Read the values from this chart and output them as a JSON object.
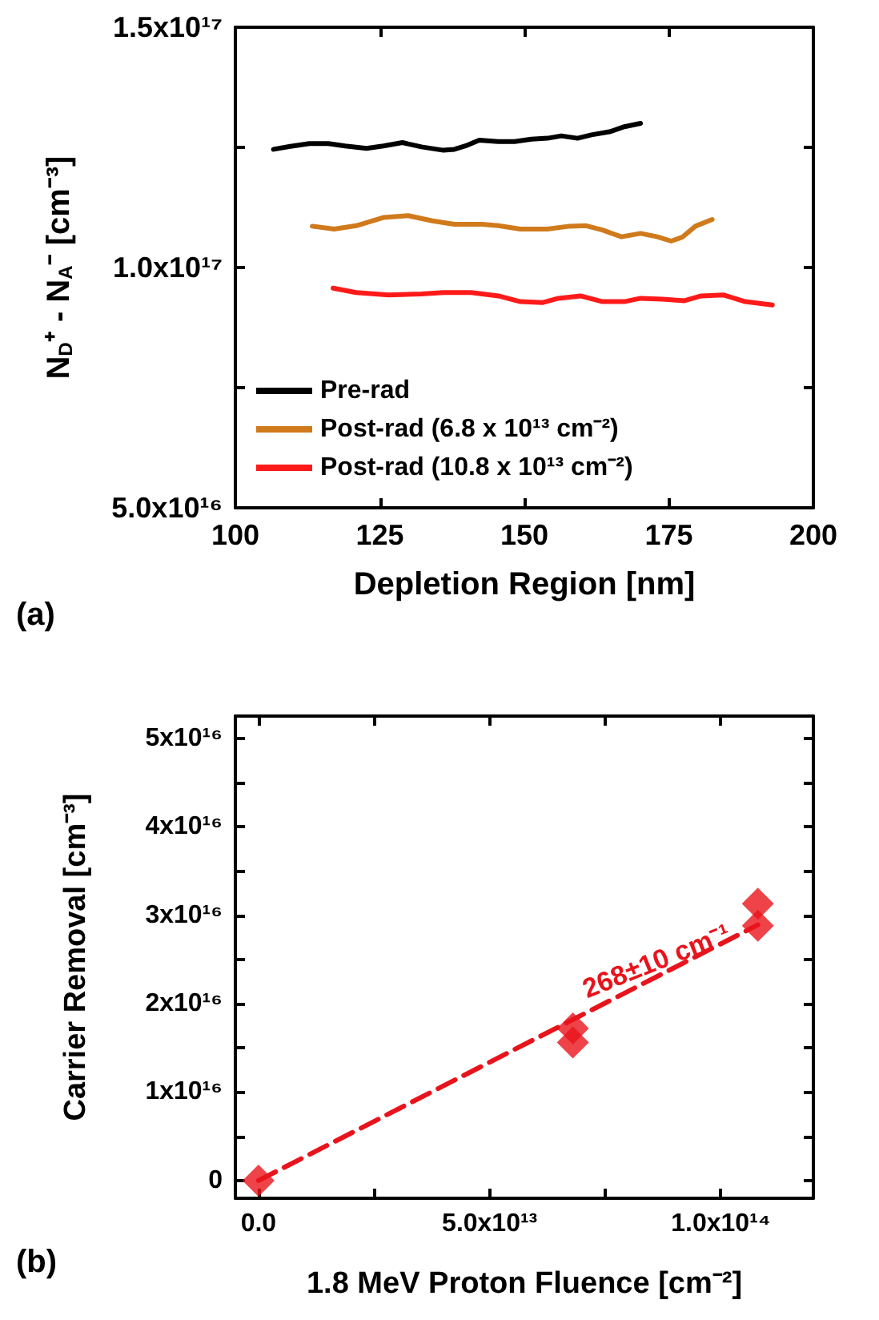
{
  "chart_data": [
    {
      "type": "line",
      "xlabel": "Depletion Region [nm]",
      "ylabel": "N$_{D}$⁺ - N$_{A}$⁻ [cm⁻³]",
      "xlim": [
        100,
        200
      ],
      "xticks": [
        100,
        125,
        150,
        175,
        200
      ],
      "ylim": [
        5e+16,
        1.5e+17
      ],
      "yticks": [
        {
          "value": 5e+16,
          "label": "5.0x10¹⁶"
        },
        {
          "value": 7.5e+16,
          "label": null
        },
        {
          "value": 1e+17,
          "label": "1.0x10¹⁷"
        },
        {
          "value": 1.25e+17,
          "label": null
        },
        {
          "value": 1.5e+17,
          "label": "1.5x10¹⁷"
        }
      ],
      "grid": false,
      "legend": "bottom left",
      "marker": "none",
      "line_style": "solid",
      "annotations": [
        "(a)"
      ],
      "series": [
        {
          "name": "Pre-rad",
          "color": "#000000",
          "x": [
            106.6,
            109.5,
            112.8,
            116.1,
            119.0,
            122.7,
            125.6,
            128.9,
            132.2,
            136.0,
            137.9,
            139.8,
            142.2,
            145.5,
            148.3,
            151.2,
            154.0,
            156.4,
            159.2,
            161.6,
            164.9,
            167.3,
            170.1
          ],
          "values": [
            1.246e+17,
            1.252e+17,
            1.258e+17,
            1.258e+17,
            1.253e+17,
            1.248e+17,
            1.253e+17,
            1.26e+17,
            1.251e+17,
            1.244e+17,
            1.246e+17,
            1.253e+17,
            1.265e+17,
            1.262e+17,
            1.262e+17,
            1.267e+17,
            1.269e+17,
            1.274e+17,
            1.269e+17,
            1.276e+17,
            1.283e+17,
            1.293e+17,
            1.3e+17
          ]
        },
        {
          "name": "Post-rad (6.8 x 10¹³ cm⁻²)",
          "color": "#d07a1c",
          "x": [
            113.3,
            117.1,
            120.9,
            125.6,
            129.9,
            134.1,
            137.9,
            142.7,
            145.5,
            149.3,
            154.0,
            157.8,
            160.7,
            163.5,
            166.8,
            170.1,
            173.0,
            175.4,
            177.3,
            179.6,
            182.5
          ],
          "values": [
            1.086e+17,
            1.08e+17,
            1.087e+17,
            1.104e+17,
            1.108e+17,
            1.097e+17,
            1.09e+17,
            1.09e+17,
            1.087e+17,
            1.08e+17,
            1.08e+17,
            1.086e+17,
            1.087e+17,
            1.078e+17,
            1.064e+17,
            1.071e+17,
            1.064e+17,
            1.055e+17,
            1.063e+17,
            1.086e+17,
            1.1e+17
          ]
        },
        {
          "name": "Post-rad (10.8 x 10¹³ cm⁻²)",
          "color": "#ff1a1a",
          "x": [
            116.9,
            120.9,
            126.5,
            132.2,
            136.0,
            140.8,
            145.5,
            149.3,
            153.1,
            155.9,
            159.7,
            163.5,
            167.3,
            170.1,
            173.9,
            177.7,
            180.6,
            184.4,
            188.2,
            192.9
          ],
          "values": [
            9.57e+16,
            9.48e+16,
            9.43e+16,
            9.45e+16,
            9.48e+16,
            9.48e+16,
            9.41e+16,
            9.29e+16,
            9.27e+16,
            9.36e+16,
            9.41e+16,
            9.29e+16,
            9.29e+16,
            9.36e+16,
            9.34e+16,
            9.31e+16,
            9.41e+16,
            9.43e+16,
            9.29e+16,
            9.22e+16
          ]
        }
      ]
    },
    {
      "type": "scatter",
      "xlabel": "1.8 MeV Proton Fluence [cm⁻²]",
      "ylabel": "Carrier Removal [cm⁻³]",
      "xlim": [
        -5000000000000.0,
        120000000000000.0
      ],
      "xticks": [
        {
          "value": 0,
          "label": "0.0"
        },
        {
          "value": 25000000000000.0,
          "label": null
        },
        {
          "value": 50000000000000.0,
          "label": "5.0x10¹³"
        },
        {
          "value": 75000000000000.0,
          "label": null
        },
        {
          "value": 100000000000000.0,
          "label": "1.0x10¹⁴"
        }
      ],
      "ylim": [
        -2000000000000000.0,
        5.25e+16
      ],
      "yticks": [
        0,
        {
          "value": 5000000000000000.0,
          "label": null
        },
        {
          "value": 1e+16,
          "label": "1x10¹⁶"
        },
        {
          "value": 1.5e+16,
          "label": null
        },
        {
          "value": 2e+16,
          "label": "2x10¹⁶"
        },
        {
          "value": 2.5e+16,
          "label": null
        },
        {
          "value": 3e+16,
          "label": "3x10¹⁶"
        },
        {
          "value": 3.5e+16,
          "label": null
        },
        {
          "value": 4e+16,
          "label": "4x10¹⁶"
        },
        {
          "value": 4.5e+16,
          "label": null
        },
        {
          "value": 5e+16,
          "label": "5x10¹⁶"
        }
      ],
      "grid": false,
      "legend": false,
      "marker": "diamond",
      "annotations": [
        "268±10 cm⁻¹",
        "(b)"
      ],
      "series": [
        {
          "type": "scatter",
          "color": "#e8141c",
          "x": [
            0,
            68000000000000.0,
            68000000000000.0,
            108000000000000.0,
            108000000000000.0
          ],
          "values": [
            0,
            1.72e+16,
            1.56e+16,
            3.13e+16,
            2.88e+16
          ]
        },
        {
          "type": "line",
          "color": "#e8141c",
          "marker": "none",
          "line_style": "dashed",
          "x": [
            0,
            108000000000000.0
          ],
          "values": [
            0,
            2.89e+16
          ]
        }
      ]
    }
  ]
}
